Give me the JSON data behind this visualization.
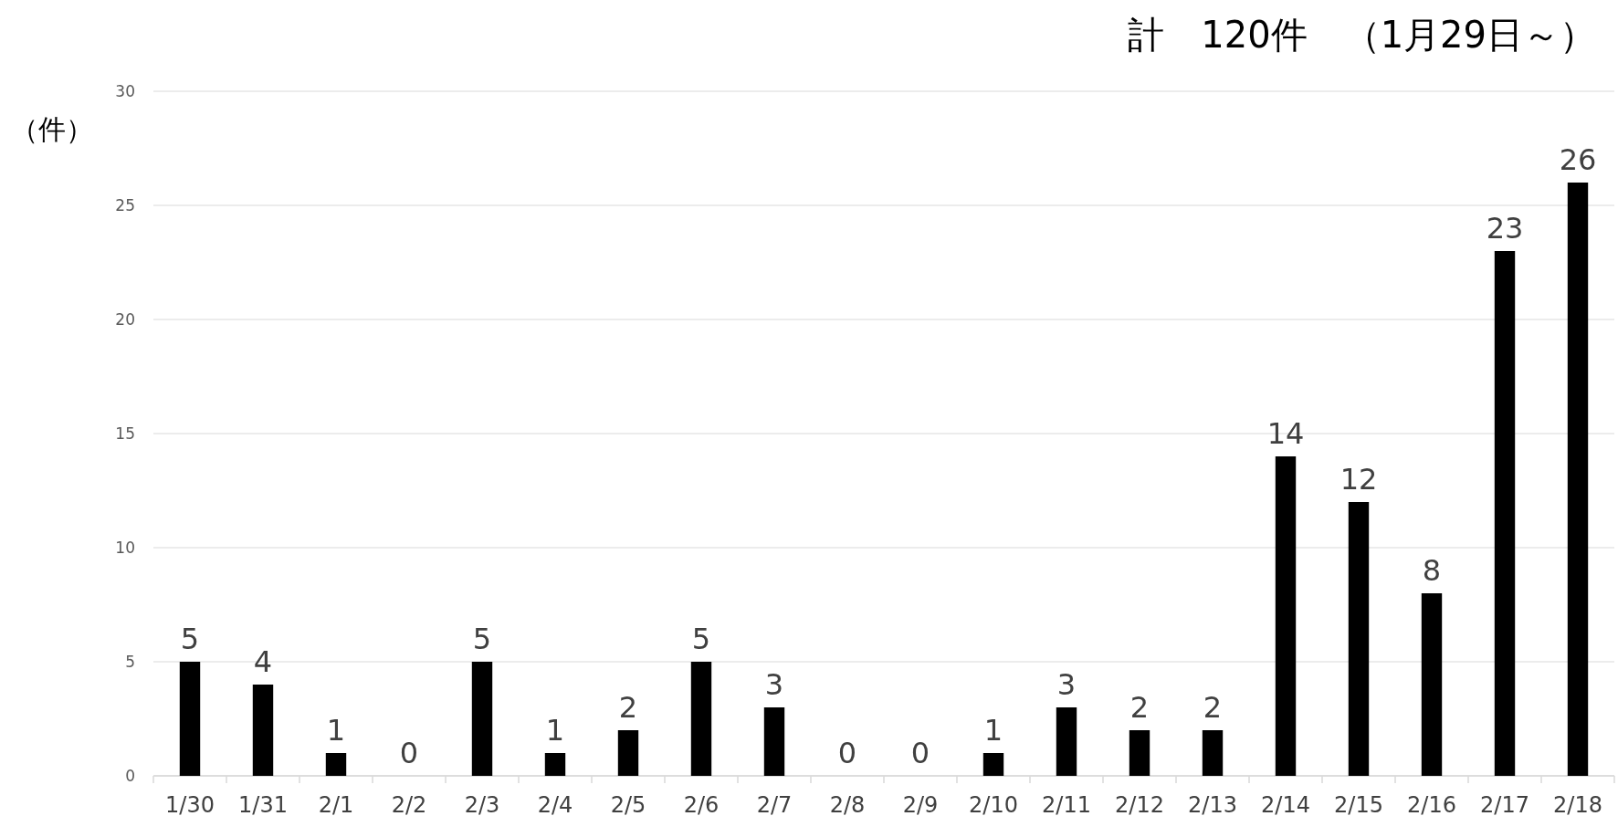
{
  "chart_data": {
    "type": "bar",
    "title": "計　120件　（1月29日～）",
    "ylabel": "（件）",
    "categories": [
      "1/30",
      "1/31",
      "2/1",
      "2/2",
      "2/3",
      "2/4",
      "2/5",
      "2/6",
      "2/7",
      "2/8",
      "2/9",
      "2/10",
      "2/11",
      "2/12",
      "2/13",
      "2/14",
      "2/15",
      "2/16",
      "2/17",
      "2/18"
    ],
    "values": [
      5,
      4,
      1,
      0,
      5,
      1,
      2,
      5,
      3,
      0,
      0,
      1,
      3,
      2,
      2,
      14,
      12,
      8,
      23,
      26
    ],
    "color": "#000000",
    "ylim": [
      0,
      30
    ],
    "yticks": [
      0,
      5,
      10,
      15,
      20,
      25,
      30
    ],
    "grid": "y",
    "data_labels": true
  }
}
